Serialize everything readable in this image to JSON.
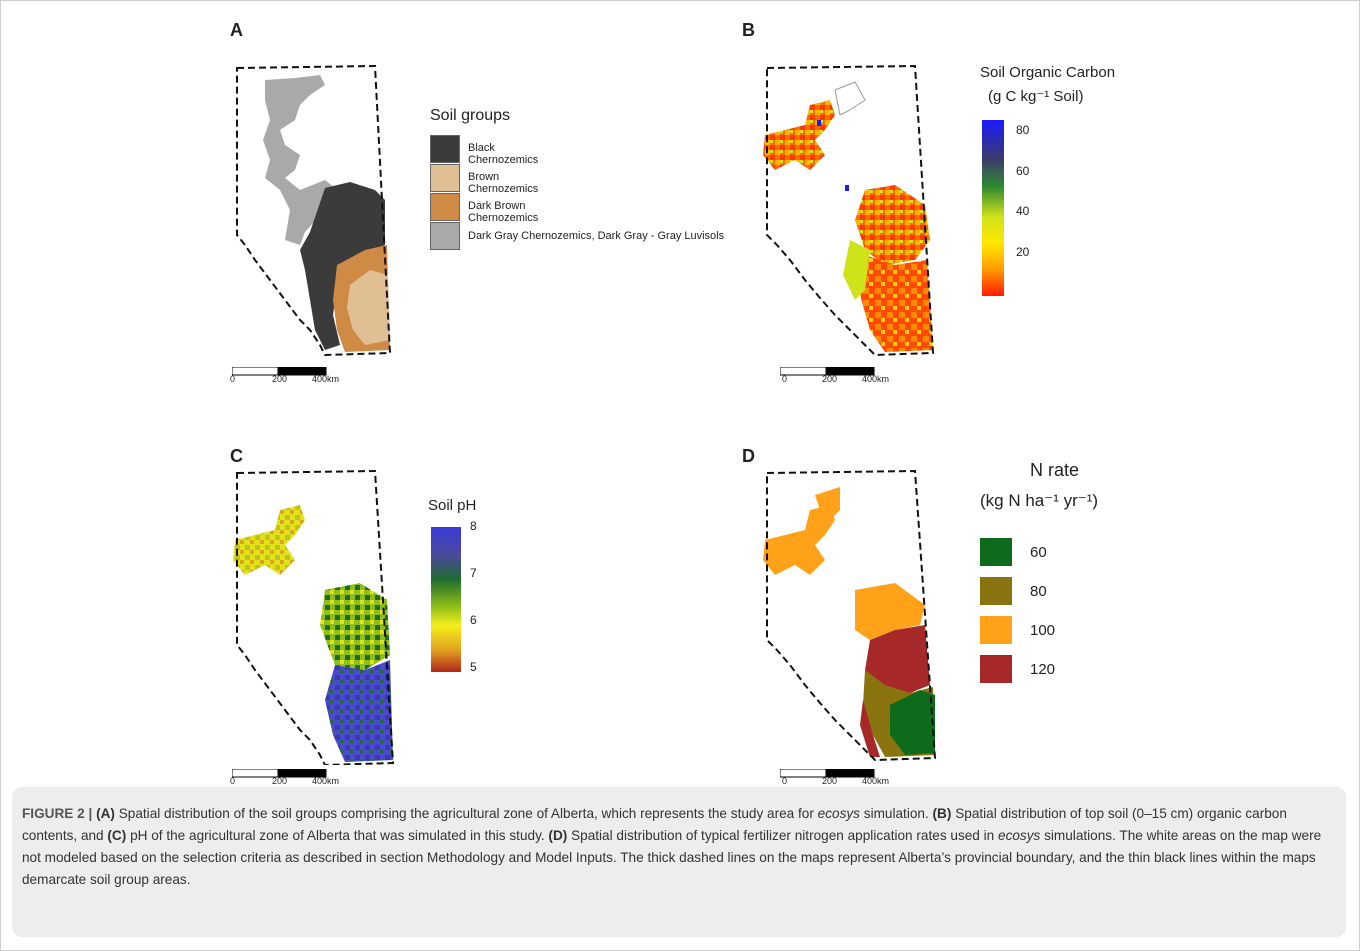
{
  "panels": {
    "a": {
      "letter": "A"
    },
    "b": {
      "letter": "B"
    },
    "c": {
      "letter": "C"
    },
    "d": {
      "letter": "D"
    }
  },
  "scalebar": {
    "ticks": [
      "0",
      "200",
      "400km"
    ]
  },
  "legend_a": {
    "title": "Soil groups",
    "items": [
      {
        "label": "Black Chernozemics",
        "color": "#3b3b3b"
      },
      {
        "label": "Brown Chernozemics",
        "color": "#e1bf94"
      },
      {
        "label": "Dark Brown Chernozemics",
        "color": "#cf8a45"
      },
      {
        "label": "Dark Gray Chernozemics, Dark Gray - Gray Luvisols",
        "color": "#a9a9a9"
      }
    ]
  },
  "legend_b": {
    "title_line1": "Soil Organic Carbon",
    "title_line2": "(g C kg⁻¹ Soil)",
    "ticks": [
      "80",
      "60",
      "40",
      "20"
    ],
    "gradient": [
      "#1a1aff",
      "#3b3b6b",
      "#2f8a2f",
      "#cfe21a",
      "#ffe800",
      "#ff9a00",
      "#ff1a00"
    ]
  },
  "legend_c": {
    "title": "Soil pH",
    "ticks": [
      "8",
      "7",
      "6",
      "5"
    ],
    "gradient": [
      "#3a3ad8",
      "#4a4a9a",
      "#1f6b2f",
      "#8fbf1a",
      "#f4ef1a",
      "#e0a020",
      "#b0281c"
    ]
  },
  "legend_d": {
    "title_line1": "N rate",
    "title_line2": "(kg N ha⁻¹ yr⁻¹)",
    "items": [
      {
        "label": "60",
        "color": "#0f6b1c"
      },
      {
        "label": "80",
        "color": "#8a7410"
      },
      {
        "label": "100",
        "color": "#ffa21a"
      },
      {
        "label": "120",
        "color": "#a62828"
      }
    ]
  },
  "caption": {
    "fig_label": "FIGURE 2 |",
    "a_label": "(A)",
    "a_text": "Spatial distribution of the soil groups comprising the agricultural zone of Alberta, which represents the study area for",
    "ecosys1": "ecosys",
    "a_tail": "simulation.",
    "b_label": "(B)",
    "b_text": "Spatial distribution of top soil (0–15 cm) organic carbon contents, and",
    "c_label": "(C)",
    "c_text": "pH of the agricultural zone of Alberta that was simulated in this study.",
    "d_label": "(D)",
    "d_text": "Spatial distribution of typical fertilizer nitrogen application rates used in",
    "ecosys2": "ecosys",
    "d_tail": "simulations. The white areas on the map were not modeled based on the selection criteria as described in section Methodology and Model Inputs. The thick dashed lines on the maps represent Alberta’s provincial boundary, and the thin black lines within the maps demarcate soil group areas."
  }
}
